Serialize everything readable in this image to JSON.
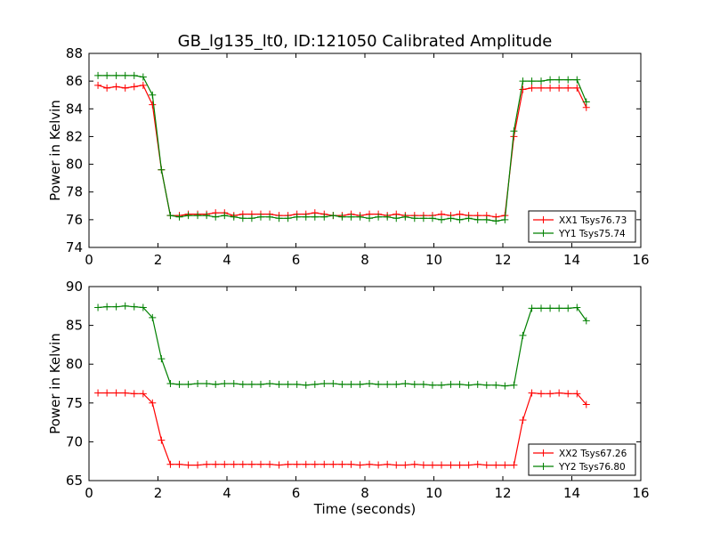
{
  "page": {
    "title": "GB_lg135_lt0, ID:121050 Calibrated Amplitude"
  },
  "chart_data": [
    {
      "type": "line",
      "title": "GB_lg135_lt0, ID:121050 Calibrated Amplitude",
      "xlabel": "",
      "ylabel": "Power in Kelvin",
      "xlim": [
        0,
        16
      ],
      "ylim": [
        74,
        88
      ],
      "xticks": [
        0,
        2,
        4,
        6,
        8,
        10,
        12,
        14,
        16
      ],
      "yticks": [
        74,
        76,
        78,
        80,
        82,
        84,
        86,
        88
      ],
      "grid": false,
      "legend_position": "lower-right",
      "x": [
        0.26,
        0.52,
        0.79,
        1.05,
        1.31,
        1.57,
        1.84,
        2.1,
        2.36,
        2.62,
        2.88,
        3.15,
        3.41,
        3.67,
        3.93,
        4.2,
        4.46,
        4.72,
        4.98,
        5.24,
        5.51,
        5.77,
        6.03,
        6.29,
        6.55,
        6.82,
        7.08,
        7.34,
        7.6,
        7.86,
        8.13,
        8.39,
        8.65,
        8.91,
        9.17,
        9.44,
        9.7,
        9.96,
        10.22,
        10.49,
        10.75,
        11.01,
        11.27,
        11.53,
        11.8,
        12.06,
        12.32,
        12.58,
        12.84,
        13.11,
        13.37,
        13.63,
        13.89,
        14.15,
        14.42
      ],
      "series": [
        {
          "name": "XX1 Tsys76.73",
          "color": "#ff0000",
          "values": [
            85.7,
            85.5,
            85.6,
            85.5,
            85.6,
            85.7,
            84.3,
            79.6,
            76.3,
            76.3,
            76.4,
            76.4,
            76.4,
            76.5,
            76.5,
            76.3,
            76.4,
            76.4,
            76.4,
            76.4,
            76.3,
            76.3,
            76.4,
            76.4,
            76.5,
            76.4,
            76.3,
            76.3,
            76.4,
            76.3,
            76.4,
            76.4,
            76.3,
            76.4,
            76.3,
            76.3,
            76.3,
            76.3,
            76.4,
            76.3,
            76.4,
            76.3,
            76.3,
            76.3,
            76.2,
            76.3,
            82.0,
            85.4,
            85.5,
            85.5,
            85.5,
            85.5,
            85.5,
            85.5,
            84.1
          ]
        },
        {
          "name": "YY1 Tsys75.74",
          "color": "#008000",
          "values": [
            86.4,
            86.4,
            86.4,
            86.4,
            86.4,
            86.3,
            85.0,
            79.6,
            76.3,
            76.2,
            76.3,
            76.3,
            76.3,
            76.2,
            76.3,
            76.2,
            76.1,
            76.1,
            76.2,
            76.2,
            76.1,
            76.1,
            76.2,
            76.2,
            76.2,
            76.2,
            76.3,
            76.2,
            76.2,
            76.2,
            76.1,
            76.2,
            76.2,
            76.1,
            76.2,
            76.1,
            76.1,
            76.1,
            76.0,
            76.1,
            76.0,
            76.1,
            76.0,
            76.0,
            75.9,
            76.0,
            82.4,
            86.0,
            86.0,
            86.0,
            86.1,
            86.1,
            86.1,
            86.1,
            84.5
          ]
        }
      ]
    },
    {
      "type": "line",
      "title": "",
      "xlabel": "Time (seconds)",
      "ylabel": "Power in Kelvin",
      "xlim": [
        0,
        16
      ],
      "ylim": [
        65,
        90
      ],
      "xticks": [
        0,
        2,
        4,
        6,
        8,
        10,
        12,
        14,
        16
      ],
      "yticks": [
        65,
        70,
        75,
        80,
        85,
        90
      ],
      "grid": false,
      "legend_position": "lower-right",
      "x": [
        0.26,
        0.52,
        0.79,
        1.05,
        1.31,
        1.57,
        1.84,
        2.1,
        2.36,
        2.62,
        2.88,
        3.15,
        3.41,
        3.67,
        3.93,
        4.2,
        4.46,
        4.72,
        4.98,
        5.24,
        5.51,
        5.77,
        6.03,
        6.29,
        6.55,
        6.82,
        7.08,
        7.34,
        7.6,
        7.86,
        8.13,
        8.39,
        8.65,
        8.91,
        9.17,
        9.44,
        9.7,
        9.96,
        10.22,
        10.49,
        10.75,
        11.01,
        11.27,
        11.53,
        11.8,
        12.06,
        12.32,
        12.58,
        12.84,
        13.11,
        13.37,
        13.63,
        13.89,
        14.15,
        14.42
      ],
      "series": [
        {
          "name": "XX2 Tsys67.26",
          "color": "#ff0000",
          "values": [
            76.3,
            76.3,
            76.3,
            76.3,
            76.2,
            76.2,
            75.0,
            70.2,
            67.1,
            67.1,
            67.0,
            67.0,
            67.1,
            67.1,
            67.1,
            67.1,
            67.1,
            67.1,
            67.1,
            67.1,
            67.0,
            67.1,
            67.1,
            67.1,
            67.1,
            67.1,
            67.1,
            67.1,
            67.1,
            67.0,
            67.1,
            67.0,
            67.1,
            67.0,
            67.0,
            67.1,
            67.0,
            67.0,
            67.0,
            67.0,
            67.0,
            67.0,
            67.1,
            67.0,
            67.0,
            67.0,
            67.0,
            72.8,
            76.3,
            76.2,
            76.2,
            76.3,
            76.2,
            76.2,
            74.8
          ]
        },
        {
          "name": "YY2 Tsys76.80",
          "color": "#008000",
          "values": [
            87.3,
            87.4,
            87.4,
            87.5,
            87.4,
            87.3,
            86.0,
            80.7,
            77.5,
            77.4,
            77.4,
            77.5,
            77.5,
            77.4,
            77.5,
            77.5,
            77.4,
            77.4,
            77.4,
            77.5,
            77.4,
            77.4,
            77.4,
            77.3,
            77.4,
            77.5,
            77.5,
            77.4,
            77.4,
            77.4,
            77.5,
            77.4,
            77.4,
            77.4,
            77.5,
            77.4,
            77.4,
            77.3,
            77.3,
            77.4,
            77.4,
            77.3,
            77.4,
            77.3,
            77.3,
            77.2,
            77.3,
            83.7,
            87.2,
            87.2,
            87.2,
            87.2,
            87.2,
            87.3,
            85.6
          ]
        }
      ]
    }
  ]
}
